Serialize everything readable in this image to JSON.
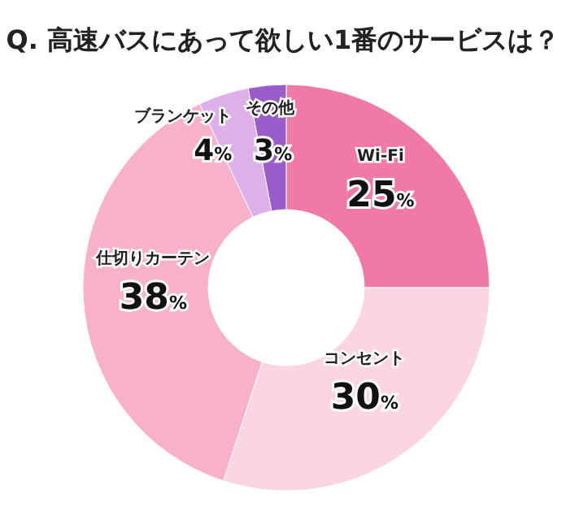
{
  "chart_data": {
    "type": "donut",
    "title": "Q. 高速バスにあって欲しい1番のサービスは？",
    "categories": [
      "Wi-Fi",
      "コンセント",
      "仕切りカーテン",
      "ブランケット",
      "その他"
    ],
    "values": [
      25,
      30,
      38,
      4,
      3
    ],
    "colors": [
      "#f07aa5",
      "#fcd5e3",
      "#f8b0cb",
      "#ddb0ea",
      "#9a5cc8"
    ],
    "value_labels": [
      "25%",
      "30%",
      "38%",
      "4%",
      "3%"
    ]
  }
}
